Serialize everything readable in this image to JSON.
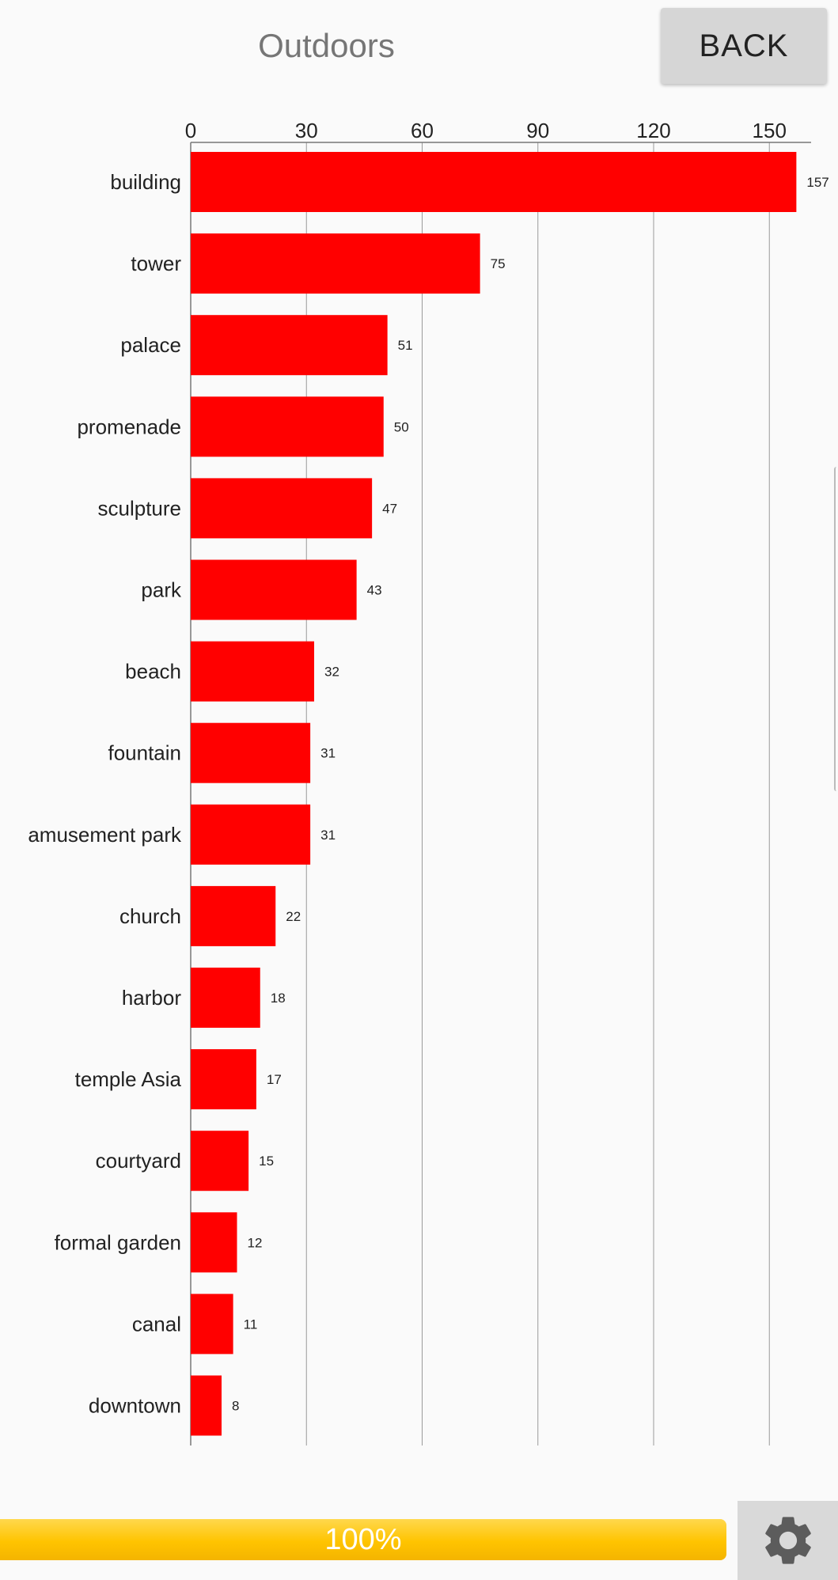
{
  "header": {
    "title": "Outdoors",
    "back_label": "BACK"
  },
  "chart_data": {
    "type": "bar",
    "orientation": "horizontal",
    "categories": [
      "building",
      "tower",
      "palace",
      "promenade",
      "sculpture",
      "park",
      "beach",
      "fountain",
      "amusement park",
      "church",
      "harbor",
      "temple Asia",
      "courtyard",
      "formal garden",
      "canal",
      "downtown"
    ],
    "values": [
      157,
      75,
      51,
      50,
      47,
      43,
      32,
      31,
      31,
      22,
      18,
      17,
      15,
      12,
      11,
      8
    ],
    "data_labels": [
      "157",
      "75",
      "51",
      "50",
      "47",
      "43",
      "32",
      "31",
      "31",
      "22",
      "18",
      "17",
      "15",
      "12",
      "11",
      "8"
    ],
    "x_ticks": [
      0,
      30,
      60,
      90,
      120,
      150
    ],
    "xlim": [
      0,
      160
    ],
    "x_axis_position": "top",
    "grid": true,
    "bar_color": "#ff0000",
    "title": "",
    "xlabel": "",
    "ylabel": ""
  },
  "progress": {
    "label": "100%",
    "value": 1.0,
    "color": "#ffc400"
  },
  "settings": {
    "icon": "gear-icon",
    "color": "#5c5c5c"
  }
}
